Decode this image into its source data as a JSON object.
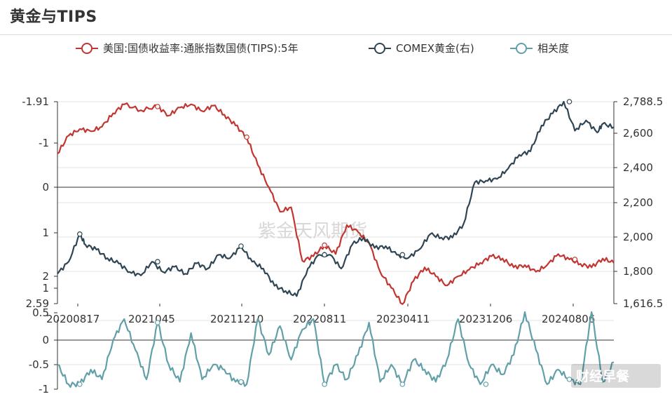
{
  "title": "黄金与TIPS",
  "legend": [
    {
      "label": "美国:国债收益率:通胀指数国债(TIPS):5年",
      "color": "#c23531"
    },
    {
      "label": "COMEX黄金(右)",
      "color": "#2f4554"
    },
    {
      "label": "相关度",
      "color": "#61a0a8"
    }
  ],
  "watermark": "紫金天风期货",
  "corner_tag": "财经早餐",
  "chart_data": {
    "type": "line",
    "x_ticks": [
      "20200817",
      "2021045",
      "20211210",
      "20220811",
      "20230411",
      "20231206",
      "20240806"
    ],
    "left_axis_ticks": [
      "-1.91",
      "-1",
      "0",
      "1",
      "2",
      "2.59"
    ],
    "right_axis_ticks": [
      "2,788.5",
      "2,600",
      "2,400",
      "2,200",
      "2,000",
      "1,800",
      "1,616.5"
    ],
    "corr_axis_ticks": [
      "1",
      "0.5",
      "0",
      "-0.5",
      "-1"
    ],
    "left_axis": {
      "min": -1.91,
      "max": 2.59,
      "inverted": true
    },
    "right_axis": {
      "min": 1616.5,
      "max": 2788.5
    },
    "corr_axis": {
      "min": -1,
      "max": 1
    },
    "series": [
      {
        "name": "美国:国债收益率:通胀指数国债(TIPS):5年",
        "axis": "left",
        "color": "#c23531",
        "t": [
          0,
          2,
          4,
          6,
          8,
          10,
          12,
          15,
          18,
          20,
          22,
          24,
          26,
          28,
          30,
          32,
          34,
          36,
          38,
          40,
          42,
          44,
          46,
          48,
          50,
          52,
          54,
          56,
          58,
          60,
          62,
          64,
          66,
          68,
          70,
          72,
          74,
          76,
          78,
          80,
          82,
          84,
          86,
          88,
          90,
          92,
          94,
          96,
          98,
          100
        ],
        "values": [
          -0.75,
          -1.15,
          -1.3,
          -1.25,
          -1.35,
          -1.65,
          -1.85,
          -1.72,
          -1.8,
          -1.6,
          -1.78,
          -1.85,
          -1.7,
          -1.82,
          -1.62,
          -1.38,
          -1.12,
          -0.5,
          0.0,
          0.55,
          0.45,
          1.65,
          1.55,
          1.3,
          1.5,
          0.85,
          1.0,
          1.25,
          1.9,
          2.25,
          2.6,
          2.1,
          1.8,
          2.0,
          2.2,
          2.0,
          1.85,
          1.7,
          1.55,
          1.6,
          1.8,
          1.75,
          1.9,
          1.75,
          1.5,
          1.62,
          1.72,
          1.8,
          1.6,
          1.7
        ]
      },
      {
        "name": "COMEX黄金(右)",
        "axis": "right",
        "color": "#2f4554",
        "t": [
          0,
          2,
          4,
          5,
          7,
          9,
          11,
          13,
          15,
          17,
          19,
          21,
          23,
          25,
          27,
          29,
          31,
          33,
          35,
          37,
          39,
          41,
          43,
          45,
          47,
          49,
          51,
          53,
          55,
          57,
          59,
          61,
          63,
          65,
          67,
          69,
          71,
          73,
          75,
          77,
          79,
          81,
          83,
          85,
          87,
          89,
          91,
          93,
          95,
          97,
          98,
          100
        ],
        "values": [
          1790,
          1860,
          2020,
          1960,
          1930,
          1880,
          1850,
          1800,
          1780,
          1860,
          1800,
          1830,
          1790,
          1850,
          1820,
          1900,
          1880,
          1950,
          1860,
          1820,
          1720,
          1690,
          1660,
          1820,
          1900,
          1900,
          1820,
          1960,
          2000,
          1940,
          1950,
          1900,
          1880,
          1930,
          2020,
          2000,
          2000,
          2080,
          2320,
          2330,
          2340,
          2400,
          2480,
          2500,
          2650,
          2720,
          2788.5,
          2620,
          2680,
          2610,
          2660,
          2640
        ]
      },
      {
        "name": "相关度",
        "axis": "corr",
        "color": "#61a0a8",
        "t": [
          0,
          2,
          4,
          6,
          8,
          10,
          12,
          14,
          16,
          18,
          20,
          22,
          24,
          26,
          28,
          30,
          32,
          34,
          36,
          38,
          40,
          42,
          44,
          46,
          48,
          50,
          52,
          54,
          56,
          58,
          60,
          62,
          64,
          66,
          68,
          70,
          72,
          74,
          76,
          78,
          80,
          82,
          84,
          86,
          88,
          90,
          92,
          94,
          96,
          98,
          100
        ],
        "values": [
          -0.5,
          -0.9,
          -0.9,
          -0.6,
          -0.8,
          0.0,
          0.6,
          -0.2,
          -0.8,
          0.5,
          -0.5,
          -0.85,
          0.2,
          -0.8,
          -0.5,
          -0.6,
          -0.85,
          -0.9,
          0.6,
          -0.3,
          0.4,
          -0.4,
          0.3,
          0.6,
          -0.9,
          -0.5,
          -0.8,
          -0.3,
          0.5,
          -0.85,
          -0.5,
          -0.9,
          -0.4,
          -0.6,
          -0.85,
          -0.4,
          0.6,
          -0.5,
          -0.9,
          -0.5,
          -0.7,
          -0.3,
          0.8,
          -0.2,
          -0.9,
          -0.6,
          -0.8,
          -0.9,
          0.8,
          -0.85,
          -0.45
        ]
      }
    ],
    "markers": [
      {
        "series": 0,
        "t": 18
      },
      {
        "series": 0,
        "t": 34
      },
      {
        "series": 0,
        "t": 48
      },
      {
        "series": 0,
        "t": 93
      },
      {
        "series": 1,
        "t": 4
      },
      {
        "series": 1,
        "t": 18
      },
      {
        "series": 1,
        "t": 33
      },
      {
        "series": 1,
        "t": 48
      },
      {
        "series": 1,
        "t": 62
      },
      {
        "series": 1,
        "t": 92
      },
      {
        "series": 2,
        "t": 4
      },
      {
        "series": 2,
        "t": 18
      },
      {
        "series": 2,
        "t": 33
      },
      {
        "series": 2,
        "t": 48
      },
      {
        "series": 2,
        "t": 62
      },
      {
        "series": 2,
        "t": 77
      },
      {
        "series": 2,
        "t": 92
      }
    ]
  }
}
